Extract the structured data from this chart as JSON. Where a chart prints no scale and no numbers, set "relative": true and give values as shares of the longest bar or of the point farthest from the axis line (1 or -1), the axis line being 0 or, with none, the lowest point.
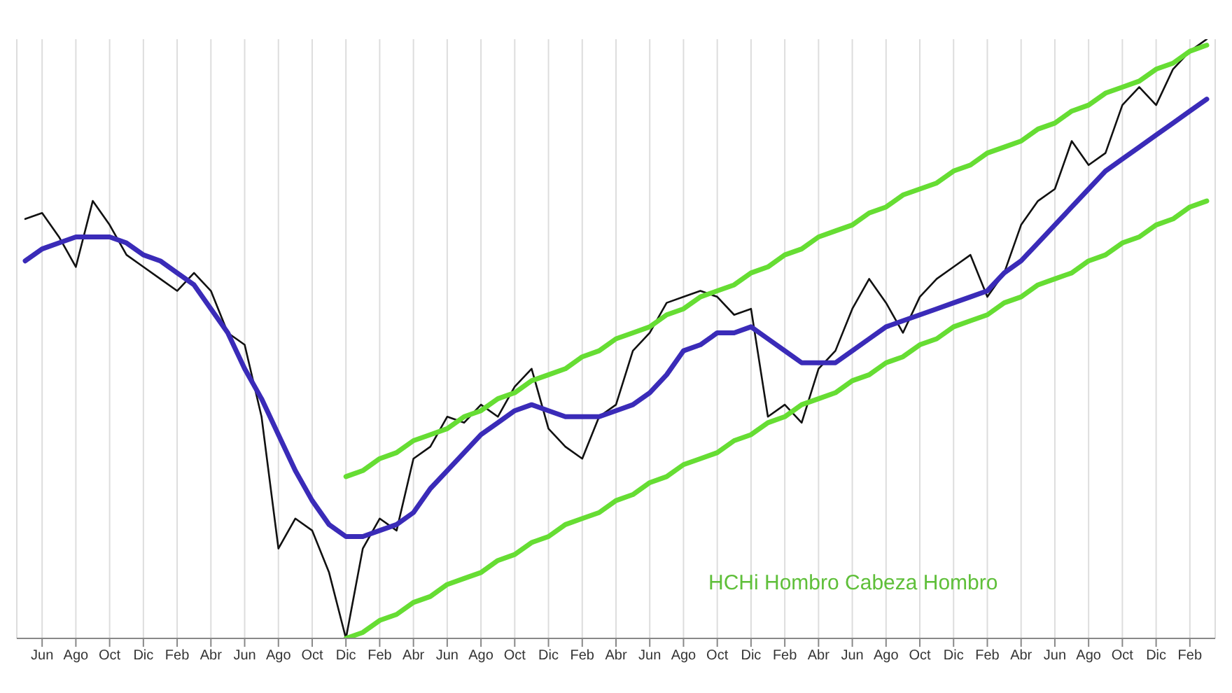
{
  "chart_data": {
    "type": "line",
    "relative": true,
    "grid": "x",
    "legend": false,
    "marker": "none",
    "line_style": "solid",
    "categories": [
      null,
      "Jun",
      null,
      "Ago",
      null,
      "Oct",
      null,
      "Dic",
      null,
      "Feb",
      null,
      "Abr",
      null,
      "Jun",
      null,
      "Ago",
      null,
      "Oct",
      null,
      "Dic",
      null,
      "Feb",
      null,
      "Abr",
      null,
      "Jun",
      null,
      "Ago",
      null,
      "Oct",
      null,
      "Dic",
      null,
      "Feb",
      null,
      "Abr",
      null,
      "Jun",
      null,
      "Ago",
      null,
      "Oct",
      null,
      "Dic",
      null,
      "Feb",
      null,
      "Abr",
      null,
      "Jun",
      null,
      "Ago",
      null,
      "Oct",
      null,
      "Dic",
      null,
      "Feb",
      null,
      "Abr",
      null,
      "Jun",
      null,
      "Ago",
      null,
      "Oct",
      null,
      "Dic",
      null,
      "Feb",
      null
    ],
    "annotations": [
      "HCHi Hombro Cabeza Hombro"
    ],
    "series": [
      {
        "color": "#111111",
        "values": [
          0.7,
          0.71,
          0.67,
          0.62,
          0.73,
          0.69,
          0.64,
          0.62,
          0.6,
          0.58,
          0.61,
          0.58,
          0.51,
          0.49,
          0.37,
          0.15,
          0.2,
          0.18,
          0.11,
          0,
          0.15,
          0.2,
          0.18,
          0.3,
          0.32,
          0.37,
          0.36,
          0.39,
          0.37,
          0.42,
          0.45,
          0.35,
          0.32,
          0.3,
          0.37,
          0.39,
          0.48,
          0.51,
          0.56,
          0.57,
          0.58,
          0.57,
          0.54,
          0.55,
          0.37,
          0.39,
          0.36,
          0.45,
          0.48,
          0.55,
          0.6,
          0.56,
          0.51,
          0.57,
          0.6,
          0.62,
          0.64,
          0.57,
          0.61,
          0.69,
          0.73,
          0.75,
          0.83,
          0.79,
          0.81,
          0.89,
          0.92,
          0.89,
          0.95,
          0.98,
          1
        ]
      },
      {
        "color": "#3a2bb8",
        "values": [
          0.63,
          0.65,
          0.66,
          0.67,
          0.67,
          0.67,
          0.66,
          0.64,
          0.63,
          0.61,
          0.59,
          0.55,
          0.51,
          0.45,
          0.4,
          0.34,
          0.28,
          0.23,
          0.19,
          0.17,
          0.17,
          0.18,
          0.19,
          0.21,
          0.25,
          0.28,
          0.31,
          0.34,
          0.36,
          0.38,
          0.39,
          0.38,
          0.37,
          0.37,
          0.37,
          0.38,
          0.39,
          0.41,
          0.44,
          0.48,
          0.49,
          0.51,
          0.51,
          0.52,
          0.5,
          0.48,
          0.46,
          0.46,
          0.46,
          0.48,
          0.5,
          0.52,
          0.53,
          0.54,
          0.55,
          0.56,
          0.57,
          0.58,
          0.61,
          0.63,
          0.66,
          0.69,
          0.72,
          0.75,
          0.78,
          0.8,
          0.82,
          0.84,
          0.86,
          0.88,
          0.9
        ]
      },
      {
        "color": "#66dd33",
        "values": [
          null,
          null,
          null,
          null,
          null,
          null,
          null,
          null,
          null,
          null,
          null,
          null,
          null,
          null,
          null,
          null,
          null,
          null,
          null,
          0.27,
          0.28,
          0.3,
          0.31,
          0.33,
          0.34,
          0.35,
          0.37,
          0.38,
          0.4,
          0.41,
          0.43,
          0.44,
          0.45,
          0.47,
          0.48,
          0.5,
          0.51,
          0.52,
          0.54,
          0.55,
          0.57,
          0.58,
          0.59,
          0.61,
          0.62,
          0.64,
          0.65,
          0.67,
          0.68,
          0.69,
          0.71,
          0.72,
          0.74,
          0.75,
          0.76,
          0.78,
          0.79,
          0.81,
          0.82,
          0.83,
          0.85,
          0.86,
          0.88,
          0.89,
          0.91,
          0.92,
          0.93,
          0.95,
          0.96,
          0.98,
          0.99
        ]
      },
      {
        "color": "#66dd33",
        "values": [
          null,
          null,
          null,
          null,
          null,
          null,
          null,
          null,
          null,
          null,
          null,
          null,
          null,
          null,
          null,
          null,
          null,
          null,
          null,
          0,
          0.01,
          0.03,
          0.04,
          0.06,
          0.07,
          0.09,
          0.1,
          0.11,
          0.13,
          0.14,
          0.16,
          0.17,
          0.19,
          0.2,
          0.21,
          0.23,
          0.24,
          0.26,
          0.27,
          0.29,
          0.3,
          0.31,
          0.33,
          0.34,
          0.36,
          0.37,
          0.39,
          0.4,
          0.41,
          0.43,
          0.44,
          0.46,
          0.47,
          0.49,
          0.5,
          0.52,
          0.53,
          0.54,
          0.56,
          0.57,
          0.59,
          0.6,
          0.61,
          0.63,
          0.64,
          0.66,
          0.67,
          0.69,
          0.7,
          0.72,
          0.73
        ]
      }
    ]
  }
}
